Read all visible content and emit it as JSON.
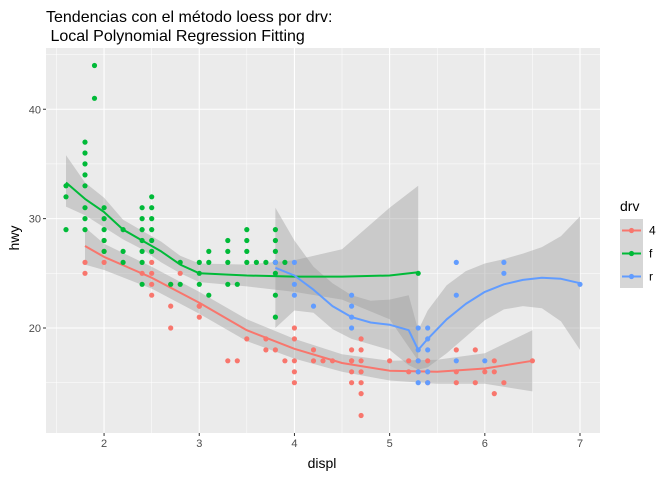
{
  "chart_data": {
    "type": "scatter",
    "title": "Tendencias  con el  método loess por drv:",
    "subtitle": " Local Polynomial Regression Fitting",
    "xlabel": "displ",
    "ylabel": "hwy",
    "xlim": [
      1.39,
      7.21
    ],
    "ylim": [
      10.4,
      45.6
    ],
    "x_ticks": [
      2,
      3,
      4,
      5,
      6,
      7
    ],
    "y_ticks": [
      20,
      30,
      40
    ],
    "grid": true,
    "legend": {
      "title": "drv",
      "position": "right",
      "entries": [
        "4",
        "f",
        "r"
      ]
    },
    "colors": {
      "4": "#F8766D",
      "f": "#00BA38",
      "r": "#619CFF",
      "band": "#999999",
      "panel": "#EBEBEB",
      "grid": "#FFFFFF"
    },
    "series": [
      {
        "name": "4",
        "points": [
          [
            1.8,
            26
          ],
          [
            1.8,
            25
          ],
          [
            2.0,
            28
          ],
          [
            2.0,
            27
          ],
          [
            2.0,
            26
          ],
          [
            2.4,
            25
          ],
          [
            2.5,
            24
          ],
          [
            2.5,
            23
          ],
          [
            2.5,
            25
          ],
          [
            2.5,
            26
          ],
          [
            2.7,
            20
          ],
          [
            2.7,
            24
          ],
          [
            2.8,
            25
          ],
          [
            3.0,
            22
          ],
          [
            3.0,
            21
          ],
          [
            3.3,
            17
          ],
          [
            3.4,
            17
          ],
          [
            3.5,
            19
          ],
          [
            3.7,
            19
          ],
          [
            3.7,
            18
          ],
          [
            3.9,
            17
          ],
          [
            4.0,
            17
          ],
          [
            4.0,
            15
          ],
          [
            4.0,
            20
          ],
          [
            4.0,
            19
          ],
          [
            4.2,
            18
          ],
          [
            4.2,
            17
          ],
          [
            4.4,
            17
          ],
          [
            4.6,
            17
          ],
          [
            4.6,
            16
          ],
          [
            4.6,
            15
          ],
          [
            4.6,
            18
          ],
          [
            4.7,
            19
          ],
          [
            4.7,
            18
          ],
          [
            4.7,
            17
          ],
          [
            4.7,
            16
          ],
          [
            4.7,
            15
          ],
          [
            4.7,
            14
          ],
          [
            4.7,
            12
          ],
          [
            5.0,
            17
          ],
          [
            5.2,
            16
          ],
          [
            5.2,
            17
          ],
          [
            5.3,
            17
          ],
          [
            5.3,
            16
          ],
          [
            5.4,
            17
          ],
          [
            5.4,
            15
          ],
          [
            5.7,
            15
          ],
          [
            5.7,
            16
          ],
          [
            5.7,
            18
          ],
          [
            6.1,
            17
          ],
          [
            6.1,
            16
          ],
          [
            6.2,
            15
          ],
          [
            6.5,
            17
          ],
          [
            4.0,
            16
          ],
          [
            4.6,
            17
          ],
          [
            5.4,
            16
          ],
          [
            5.9,
            18
          ],
          [
            5.9,
            15
          ],
          [
            6.0,
            16
          ],
          [
            6.1,
            14
          ],
          [
            3.8,
            18
          ],
          [
            4.3,
            17
          ],
          [
            2.7,
            22
          ],
          [
            3.0,
            22
          ]
        ],
        "fit": [
          [
            1.8,
            27.5
          ],
          [
            2.0,
            26.5
          ],
          [
            2.5,
            24.6
          ],
          [
            3.0,
            22.3
          ],
          [
            3.5,
            19.8
          ],
          [
            4.0,
            18.1
          ],
          [
            4.5,
            16.8
          ],
          [
            5.0,
            16.1
          ],
          [
            5.5,
            16.0
          ],
          [
            6.0,
            16.3
          ],
          [
            6.5,
            17.0
          ]
        ],
        "band_lower": [
          [
            1.8,
            25.8
          ],
          [
            2.0,
            25.3
          ],
          [
            2.5,
            23.6
          ],
          [
            3.0,
            21.3
          ],
          [
            3.5,
            18.8
          ],
          [
            4.0,
            17.2
          ],
          [
            4.5,
            16.0
          ],
          [
            5.0,
            15.2
          ],
          [
            5.5,
            14.9
          ],
          [
            6.0,
            14.9
          ],
          [
            6.5,
            14.2
          ]
        ],
        "band_upper": [
          [
            1.8,
            29.2
          ],
          [
            2.0,
            27.7
          ],
          [
            2.5,
            25.6
          ],
          [
            3.0,
            23.3
          ],
          [
            3.5,
            20.8
          ],
          [
            4.0,
            19.0
          ],
          [
            4.5,
            17.6
          ],
          [
            5.0,
            17.0
          ],
          [
            5.5,
            17.1
          ],
          [
            6.0,
            17.7
          ],
          [
            6.5,
            19.8
          ]
        ]
      },
      {
        "name": "f",
        "points": [
          [
            1.6,
            33
          ],
          [
            1.6,
            32
          ],
          [
            1.6,
            29
          ],
          [
            1.8,
            37
          ],
          [
            1.8,
            36
          ],
          [
            1.8,
            35
          ],
          [
            1.8,
            34
          ],
          [
            1.8,
            33
          ],
          [
            1.8,
            31
          ],
          [
            1.8,
            30
          ],
          [
            1.8,
            29
          ],
          [
            1.9,
            44
          ],
          [
            1.9,
            41
          ],
          [
            2.0,
            31
          ],
          [
            2.0,
            30
          ],
          [
            2.0,
            29
          ],
          [
            2.0,
            28
          ],
          [
            2.0,
            27
          ],
          [
            2.2,
            27
          ],
          [
            2.2,
            26
          ],
          [
            2.4,
            31
          ],
          [
            2.4,
            30
          ],
          [
            2.4,
            29
          ],
          [
            2.4,
            28
          ],
          [
            2.4,
            27
          ],
          [
            2.4,
            26
          ],
          [
            2.4,
            24
          ],
          [
            2.5,
            32
          ],
          [
            2.5,
            31
          ],
          [
            2.5,
            30
          ],
          [
            2.5,
            29
          ],
          [
            2.5,
            28
          ],
          [
            2.5,
            27
          ],
          [
            2.7,
            24
          ],
          [
            2.8,
            24
          ],
          [
            2.8,
            26
          ],
          [
            3.0,
            26
          ],
          [
            3.0,
            25
          ],
          [
            3.1,
            26
          ],
          [
            3.1,
            27
          ],
          [
            3.3,
            28
          ],
          [
            3.3,
            27
          ],
          [
            3.3,
            26
          ],
          [
            3.3,
            24
          ],
          [
            3.5,
            28
          ],
          [
            3.5,
            27
          ],
          [
            3.5,
            26
          ],
          [
            3.6,
            26
          ],
          [
            3.8,
            29
          ],
          [
            3.8,
            28
          ],
          [
            3.8,
            27
          ],
          [
            3.8,
            26
          ],
          [
            3.8,
            25
          ],
          [
            3.8,
            23
          ],
          [
            3.8,
            21
          ],
          [
            3.9,
            26
          ],
          [
            5.3,
            25
          ],
          [
            2.2,
            29
          ],
          [
            3.4,
            24
          ],
          [
            3.0,
            24
          ],
          [
            3.1,
            23
          ],
          [
            3.5,
            29
          ],
          [
            3.7,
            26
          ]
        ],
        "fit": [
          [
            1.6,
            33.3
          ],
          [
            1.8,
            31.8
          ],
          [
            2.0,
            30.6
          ],
          [
            2.2,
            29.0
          ],
          [
            2.4,
            28.0
          ],
          [
            2.6,
            27.0
          ],
          [
            2.8,
            25.8
          ],
          [
            3.0,
            25.0
          ],
          [
            3.5,
            24.8
          ],
          [
            4.0,
            24.7
          ],
          [
            4.5,
            24.7
          ],
          [
            5.0,
            24.8
          ],
          [
            5.3,
            25.1
          ]
        ],
        "band_lower": [
          [
            1.6,
            31.1
          ],
          [
            1.8,
            30.3
          ],
          [
            2.0,
            29.2
          ],
          [
            2.2,
            28.1
          ],
          [
            2.4,
            27.2
          ],
          [
            2.6,
            26.0
          ],
          [
            2.8,
            25.0
          ],
          [
            3.0,
            24.2
          ],
          [
            3.5,
            23.8
          ],
          [
            4.0,
            23.3
          ],
          [
            4.5,
            22.6
          ],
          [
            5.0,
            20.8
          ],
          [
            5.3,
            17.0
          ]
        ],
        "band_upper": [
          [
            1.6,
            35.8
          ],
          [
            1.8,
            33.3
          ],
          [
            2.0,
            31.9
          ],
          [
            2.2,
            29.9
          ],
          [
            2.4,
            28.9
          ],
          [
            2.6,
            27.9
          ],
          [
            2.8,
            26.6
          ],
          [
            3.0,
            25.9
          ],
          [
            3.5,
            25.8
          ],
          [
            4.0,
            26.2
          ],
          [
            4.5,
            27.2
          ],
          [
            5.0,
            31.0
          ],
          [
            5.3,
            33.0
          ]
        ]
      },
      {
        "name": "r",
        "points": [
          [
            3.8,
            26
          ],
          [
            4.0,
            26
          ],
          [
            4.0,
            24
          ],
          [
            4.0,
            23
          ],
          [
            4.2,
            22
          ],
          [
            4.6,
            23
          ],
          [
            4.6,
            22
          ],
          [
            4.6,
            21
          ],
          [
            4.6,
            20
          ],
          [
            5.3,
            20
          ],
          [
            5.3,
            18
          ],
          [
            5.3,
            17
          ],
          [
            5.3,
            16
          ],
          [
            5.3,
            15
          ],
          [
            5.4,
            20
          ],
          [
            5.4,
            19
          ],
          [
            5.4,
            18
          ],
          [
            5.4,
            16
          ],
          [
            5.4,
            15
          ],
          [
            5.7,
            26
          ],
          [
            5.7,
            23
          ],
          [
            5.7,
            17
          ],
          [
            6.0,
            17
          ],
          [
            6.2,
            26
          ],
          [
            6.2,
            25
          ],
          [
            7.0,
            24
          ]
        ],
        "fit": [
          [
            3.8,
            25.5
          ],
          [
            4.0,
            24.8
          ],
          [
            4.2,
            23.5
          ],
          [
            4.4,
            22.0
          ],
          [
            4.6,
            21.0
          ],
          [
            4.8,
            20.5
          ],
          [
            5.0,
            20.3
          ],
          [
            5.2,
            19.8
          ],
          [
            5.3,
            18.0
          ],
          [
            5.4,
            19.0
          ],
          [
            5.6,
            20.8
          ],
          [
            5.8,
            22.2
          ],
          [
            6.0,
            23.3
          ],
          [
            6.2,
            24.0
          ],
          [
            6.4,
            24.4
          ],
          [
            6.6,
            24.6
          ],
          [
            6.8,
            24.5
          ],
          [
            7.0,
            24.1
          ]
        ],
        "band_lower": [
          [
            3.8,
            20.0
          ],
          [
            4.0,
            21.6
          ],
          [
            4.2,
            21.4
          ],
          [
            4.4,
            19.9
          ],
          [
            4.6,
            19.0
          ],
          [
            4.8,
            18.5
          ],
          [
            5.0,
            18.0
          ],
          [
            5.2,
            16.6
          ],
          [
            5.3,
            16.2
          ],
          [
            5.4,
            16.4
          ],
          [
            5.6,
            17.7
          ],
          [
            5.8,
            19.2
          ],
          [
            6.0,
            20.7
          ],
          [
            6.2,
            21.7
          ],
          [
            6.4,
            22.0
          ],
          [
            6.6,
            21.8
          ],
          [
            6.8,
            20.6
          ],
          [
            7.0,
            18.0
          ]
        ],
        "band_upper": [
          [
            3.8,
            31.0
          ],
          [
            4.0,
            28.0
          ],
          [
            4.2,
            25.6
          ],
          [
            4.4,
            24.1
          ],
          [
            4.6,
            23.0
          ],
          [
            4.8,
            22.5
          ],
          [
            5.0,
            22.6
          ],
          [
            5.2,
            23.0
          ],
          [
            5.3,
            19.8
          ],
          [
            5.4,
            21.6
          ],
          [
            5.6,
            23.9
          ],
          [
            5.8,
            25.2
          ],
          [
            6.0,
            25.9
          ],
          [
            6.2,
            26.3
          ],
          [
            6.4,
            26.8
          ],
          [
            6.6,
            27.4
          ],
          [
            6.8,
            28.4
          ],
          [
            7.0,
            30.2
          ]
        ]
      }
    ]
  }
}
